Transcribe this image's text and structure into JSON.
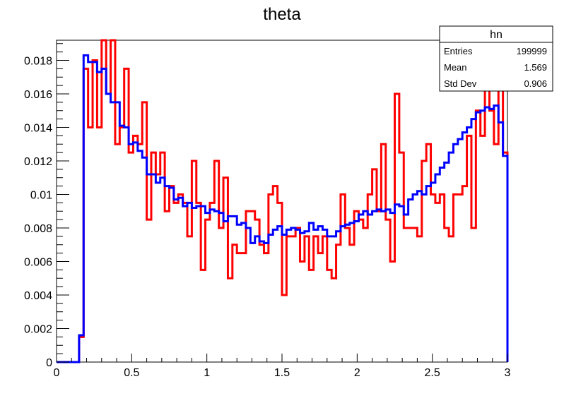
{
  "chart_data": {
    "type": "line",
    "title": "theta",
    "xlabel": "",
    "ylabel": "",
    "xlim": [
      0,
      3
    ],
    "ylim": [
      0,
      0.0192
    ],
    "grid": false,
    "x_ticks": [
      0,
      0.5,
      1,
      1.5,
      2,
      2.5,
      3
    ],
    "x_tick_labels": [
      "0",
      "0.5",
      "1",
      "1.5",
      "2",
      "2.5",
      "3"
    ],
    "y_ticks": [
      0,
      0.002,
      0.004,
      0.006,
      0.008,
      0.01,
      0.012,
      0.014,
      0.016,
      0.018
    ],
    "y_tick_labels": [
      "0",
      "0.002",
      "0.004",
      "0.006",
      "0.008",
      "0.01",
      "0.012",
      "0.014",
      "0.016",
      "0.018"
    ],
    "bin_edges": [
      0,
      0.03,
      0.06,
      0.09,
      0.12,
      0.15,
      0.18,
      0.21,
      0.24,
      0.27,
      0.3,
      0.33,
      0.36,
      0.39,
      0.42,
      0.45,
      0.48,
      0.51,
      0.54,
      0.57,
      0.6,
      0.63,
      0.66,
      0.69,
      0.72,
      0.75,
      0.78,
      0.81,
      0.84,
      0.87,
      0.9,
      0.93,
      0.96,
      0.99,
      1.02,
      1.05,
      1.08,
      1.11,
      1.14,
      1.17,
      1.2,
      1.23,
      1.26,
      1.29,
      1.32,
      1.35,
      1.38,
      1.41,
      1.44,
      1.47,
      1.5,
      1.53,
      1.56,
      1.59,
      1.62,
      1.65,
      1.68,
      1.71,
      1.74,
      1.77,
      1.8,
      1.83,
      1.86,
      1.89,
      1.92,
      1.95,
      1.98,
      2.01,
      2.04,
      2.07,
      2.1,
      2.13,
      2.16,
      2.19,
      2.22,
      2.25,
      2.28,
      2.31,
      2.34,
      2.37,
      2.4,
      2.43,
      2.46,
      2.49,
      2.52,
      2.55,
      2.58,
      2.61,
      2.64,
      2.67,
      2.7,
      2.73,
      2.76,
      2.79,
      2.82,
      2.85,
      2.88,
      2.91,
      2.94,
      2.97,
      3.0
    ],
    "series": [
      {
        "name": "hn",
        "color": "#0000ff",
        "values": [
          0,
          0,
          0,
          0,
          0,
          0.0016,
          0.0183,
          0.0179,
          0.0179,
          0.0173,
          0.0175,
          0.016,
          0.0155,
          0.0155,
          0.0141,
          0.014,
          0.013,
          0.0131,
          0.0126,
          0.0122,
          0.0112,
          0.0112,
          0.0107,
          0.011,
          0.0105,
          0.0104,
          0.0097,
          0.0098,
          0.0093,
          0.0095,
          0.0092,
          0.0093,
          0.0093,
          0.0089,
          0.0091,
          0.009,
          0.0089,
          0.0084,
          0.0087,
          0.0087,
          0.0082,
          0.0083,
          0.008,
          0.0071,
          0.0075,
          0.0072,
          0.0071,
          0.0076,
          0.0079,
          0.0081,
          0.0076,
          0.0079,
          0.008,
          0.0079,
          0.0077,
          0.0078,
          0.0083,
          0.0079,
          0.0081,
          0.0079,
          0.0075,
          0.0075,
          0.0078,
          0.0081,
          0.0082,
          0.0083,
          0.0084,
          0.0088,
          0.009,
          0.0088,
          0.009,
          0.0091,
          0.009,
          0.0091,
          0.0089,
          0.0094,
          0.0093,
          0.0088,
          0.0097,
          0.01,
          0.0102,
          0.01,
          0.0105,
          0.0107,
          0.0112,
          0.0116,
          0.0119,
          0.0125,
          0.013,
          0.0133,
          0.0137,
          0.014,
          0.0145,
          0.0149,
          0.015,
          0.0152,
          0.0151,
          0.0153,
          0.0143,
          0.0123
        ]
      },
      {
        "name": "",
        "color": "#ff0000",
        "values": [
          0,
          0,
          0,
          0,
          0,
          0.0015,
          0.0175,
          0.014,
          0.018,
          0.014,
          0.0192,
          0.016,
          0.0192,
          0.013,
          0.014,
          0.0175,
          0.0125,
          0.0135,
          0.013,
          0.0155,
          0.0085,
          0.0125,
          0.0112,
          0.0125,
          0.009,
          0.0105,
          0.0095,
          0.01,
          0.0095,
          0.0075,
          0.012,
          0.0095,
          0.0055,
          0.0085,
          0.0095,
          0.012,
          0.008,
          0.011,
          0.005,
          0.007,
          0.0065,
          0.0065,
          0.009,
          0.009,
          0.0085,
          0.007,
          0.0065,
          0.01,
          0.0105,
          0.0095,
          0.004,
          0.0075,
          0.0075,
          0.008,
          0.006,
          0.0075,
          0.0055,
          0.0075,
          0.0065,
          0.0075,
          0.0055,
          0.005,
          0.007,
          0.01,
          0.008,
          0.007,
          0.009,
          0.0085,
          0.008,
          0.01,
          0.0115,
          0.009,
          0.013,
          0.0085,
          0.006,
          0.016,
          0.0125,
          0.008,
          0.008,
          0.008,
          0.0075,
          0.012,
          0.013,
          0.01,
          0.0095,
          0.01,
          0.008,
          0.0075,
          0.01,
          0.01,
          0.0105,
          0.0135,
          0.008,
          0.015,
          0.0135,
          0.0192,
          0.015,
          0.013,
          0.0192,
          0.0145
        ]
      }
    ],
    "overflow_red_last": 0.0125,
    "stats_box": {
      "name": "hn",
      "rows": [
        {
          "label": "Entries",
          "value": "199999"
        },
        {
          "label": "Mean",
          "value": "1.569"
        },
        {
          "label": "Std Dev",
          "value": "0.906"
        }
      ]
    }
  }
}
